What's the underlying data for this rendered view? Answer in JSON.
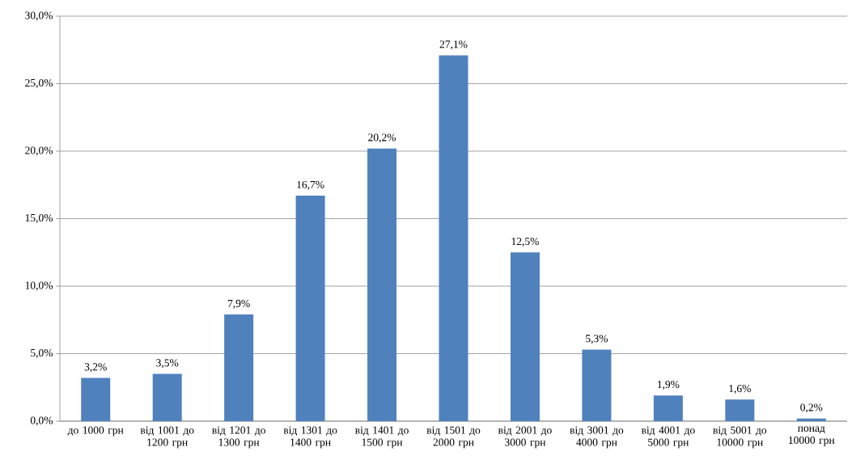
{
  "chart_data": {
    "type": "bar",
    "categories": [
      "до 1000 грн",
      "від 1001 до 1200 грн",
      "від 1201 до 1300 грн",
      "від 1301 до 1400 грн",
      "від 1401 до 1500 грн",
      "від 1501 до 2000 грн",
      "від 2001 до 3000 грн",
      "від 3001 до 4000 грн",
      "від 4001 до 5000 грн",
      "від 5001 до 10000 грн",
      "понад 10000 грн"
    ],
    "values": [
      3.2,
      3.5,
      7.9,
      16.7,
      20.2,
      27.1,
      12.5,
      5.3,
      1.9,
      1.6,
      0.2
    ],
    "value_labels": [
      "3,2%",
      "3,5%",
      "7,9%",
      "16,7%",
      "20,2%",
      "27,1%",
      "12,5%",
      "5,3%",
      "1,9%",
      "1,6%",
      "0,2%"
    ],
    "color": "#4f81bd",
    "ylim": [
      0,
      30
    ],
    "yticks": [
      {
        "value": 0,
        "label": "0,0%"
      },
      {
        "value": 5,
        "label": "5,0%"
      },
      {
        "value": 10,
        "label": "10,0%"
      },
      {
        "value": 15,
        "label": "15,0%"
      },
      {
        "value": 20,
        "label": "20,0%"
      },
      {
        "value": 25,
        "label": "25,0%"
      },
      {
        "value": 30,
        "label": "30,0%"
      }
    ],
    "grid": "y"
  }
}
